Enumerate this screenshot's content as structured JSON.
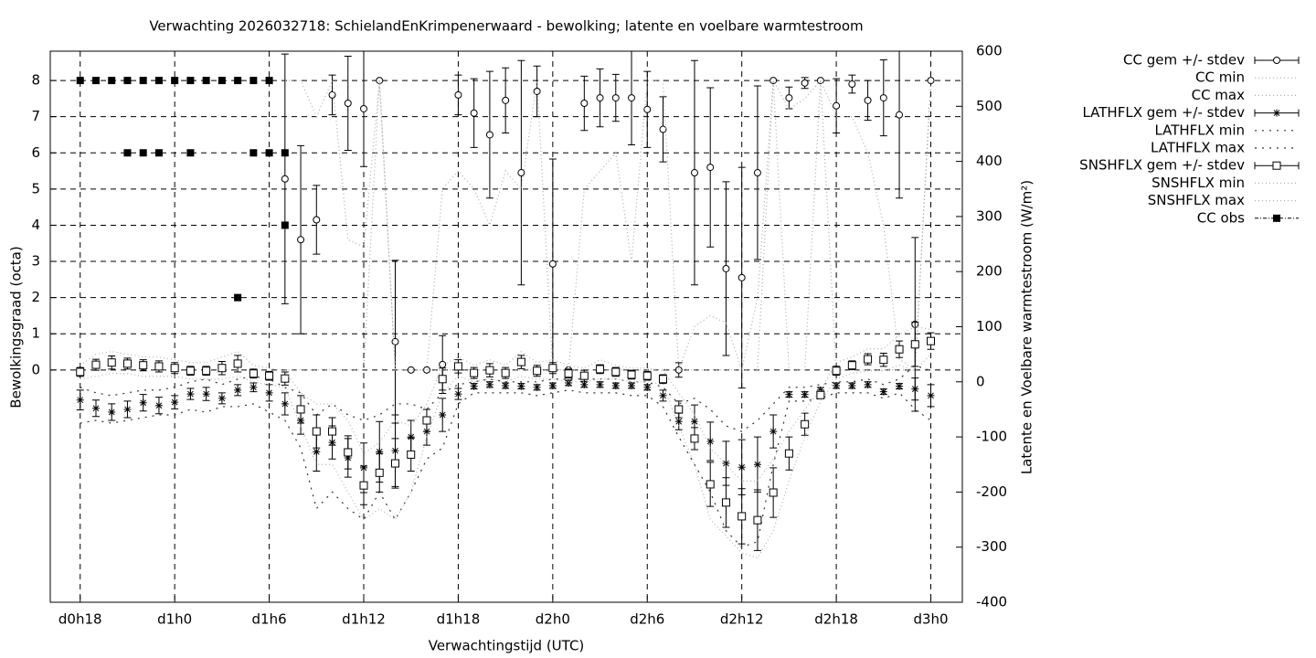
{
  "chart_data": {
    "type": "errorbar-line",
    "title": "Verwachting 2026032718: SchielandEnKrimpenerwaard - bewolking; latente en voelbare warmtestroom",
    "xlabel": "Verwachtingstijd (UTC)",
    "ylabel": "Bewolkingsgraad (octa)",
    "y2label": "Latente en Voelbare warmtestroom (W/m²)",
    "x": [
      18,
      19,
      20,
      21,
      22,
      23,
      24,
      25,
      26,
      27,
      28,
      29,
      30,
      31,
      32,
      33,
      34,
      35,
      36,
      37,
      38,
      39,
      40,
      41,
      42,
      43,
      44,
      45,
      46,
      47,
      48,
      49,
      50,
      51,
      52,
      53,
      54,
      55,
      56,
      57,
      58,
      59,
      60,
      61,
      62,
      63,
      64,
      65,
      66,
      67,
      68,
      69,
      70,
      71,
      72
    ],
    "xlim": [
      16.1,
      74
    ],
    "xticks": [
      {
        "value": 18,
        "label": "d0h18"
      },
      {
        "value": 24,
        "label": "d1h0"
      },
      {
        "value": 30,
        "label": "d1h6"
      },
      {
        "value": 36,
        "label": "d1h12"
      },
      {
        "value": 42,
        "label": "d1h18"
      },
      {
        "value": 48,
        "label": "d2h0"
      },
      {
        "value": 54,
        "label": "d2h6"
      },
      {
        "value": 60,
        "label": "d2h12"
      },
      {
        "value": 66,
        "label": "d2h18"
      },
      {
        "value": 72,
        "label": "d3h0"
      }
    ],
    "ylim": [
      -6.42,
      8.81
    ],
    "yticks": [
      0,
      1,
      2,
      3,
      4,
      5,
      6,
      7,
      8
    ],
    "y2lim": [
      -400,
      600
    ],
    "y2ticks": [
      -400,
      -300,
      -200,
      -100,
      0,
      100,
      200,
      300,
      400,
      500,
      600
    ],
    "grid": true,
    "legend": "outside-right",
    "series": [
      {
        "name": "CC gem +/- stdev",
        "style": "errorbars",
        "marker": "circle",
        "color": "#000000",
        "axis": "y",
        "values": [
          8,
          null,
          null,
          null,
          null,
          null,
          null,
          null,
          null,
          null,
          null,
          null,
          null,
          5.28,
          3.6,
          4.15,
          7.6,
          7.37,
          7.22,
          8,
          0.78,
          0,
          0,
          0.15,
          7.6,
          7.1,
          6.5,
          7.45,
          5.45,
          7.7,
          2.93,
          0,
          7.37,
          7.52,
          7.52,
          7.52,
          7.2,
          6.65,
          0,
          5.45,
          5.6,
          2.8,
          2.55,
          5.45,
          8,
          7.52,
          7.93,
          8,
          7.3,
          7.9,
          7.45,
          7.52,
          7.05,
          1.26,
          8
        ],
        "errors": [
          0,
          null,
          null,
          null,
          null,
          null,
          null,
          null,
          null,
          null,
          null,
          null,
          null,
          3.45,
          2.6,
          0.95,
          0.55,
          1.3,
          1.6,
          0,
          2.25,
          0,
          0,
          0.8,
          0.55,
          0.95,
          1.75,
          0.9,
          3.1,
          0.7,
          2.9,
          0,
          0.75,
          0.8,
          0.65,
          1.3,
          1.05,
          0.9,
          0.2,
          3.1,
          2.2,
          2.4,
          3.05,
          2.4,
          0,
          0.3,
          0.15,
          0,
          0.75,
          0.25,
          0.55,
          1.05,
          2.3,
          2.4,
          0
        ]
      },
      {
        "name": "CC min",
        "style": "line",
        "dash": "1,3",
        "color": "#aaaaaa",
        "axis": "y",
        "values": [
          8,
          null,
          null,
          null,
          null,
          null,
          null,
          null,
          null,
          null,
          null,
          null,
          null,
          0,
          0,
          0,
          0,
          0,
          0,
          8,
          0,
          0,
          0,
          0,
          0,
          0,
          0,
          0,
          0,
          0,
          0,
          0,
          0,
          0,
          0,
          0,
          0,
          0,
          0,
          0,
          0,
          0,
          0,
          0,
          8,
          0,
          0,
          8,
          0,
          0,
          0,
          0,
          0,
          0,
          8
        ]
      },
      {
        "name": "CC max",
        "style": "line",
        "dash": "1,3",
        "color": "#aaaaaa",
        "axis": "y",
        "values": [
          8,
          null,
          null,
          null,
          null,
          null,
          null,
          null,
          null,
          null,
          null,
          null,
          null,
          8,
          8,
          7,
          8,
          3.6,
          3.4,
          8,
          0,
          0,
          0,
          5,
          5.5,
          5,
          4,
          5.5,
          5,
          8,
          0,
          0,
          5,
          5.5,
          6,
          3,
          8,
          8,
          0,
          1.2,
          1.5,
          1.3,
          0,
          2,
          8,
          7.2,
          7.5,
          8,
          7,
          7,
          6,
          4,
          0.3,
          0,
          8
        ]
      },
      {
        "name": "LATHFLX gem +/- stdev",
        "style": "errorbars",
        "marker": "star",
        "color": "#000000",
        "axis": "y2",
        "values": [
          -33,
          -48,
          -55,
          -50,
          -38,
          -43,
          -37,
          -22,
          -22,
          -30,
          -15,
          -10,
          -20,
          -40,
          -70,
          -127,
          -110,
          -138,
          -156,
          -127,
          -125,
          -100,
          -90,
          -60,
          -22,
          -8,
          -5,
          -7,
          -8,
          -10,
          -7,
          -2,
          -5,
          -5,
          -7,
          -7,
          -10,
          -25,
          -72,
          -72,
          -108,
          -148,
          -155,
          -150,
          -90,
          -23,
          -23,
          -15,
          -7,
          -7,
          -5,
          -18,
          -8,
          -13,
          -25
        ],
        "errors": [
          18,
          15,
          15,
          15,
          15,
          15,
          12,
          10,
          12,
          10,
          10,
          8,
          15,
          20,
          25,
          35,
          30,
          35,
          45,
          55,
          65,
          30,
          25,
          30,
          10,
          5,
          5,
          5,
          5,
          5,
          5,
          5,
          5,
          5,
          5,
          5,
          5,
          10,
          15,
          30,
          35,
          40,
          50,
          50,
          30,
          5,
          5,
          5,
          5,
          5,
          5,
          5,
          5,
          20,
          20
        ]
      },
      {
        "name": "LATHFLX min",
        "style": "line",
        "dash": "2,6",
        "color": "#333333",
        "axis": "y2",
        "values": [
          -75,
          -70,
          -75,
          -70,
          -65,
          -60,
          -60,
          -50,
          -55,
          -45,
          -45,
          -40,
          -55,
          -70,
          -120,
          -230,
          -200,
          -230,
          -250,
          -200,
          -250,
          -200,
          -140,
          -120,
          -40,
          -20,
          -20,
          -20,
          -20,
          -25,
          -20,
          -15,
          -20,
          -20,
          -20,
          -25,
          -25,
          -45,
          -100,
          -150,
          -200,
          -270,
          -300,
          -290,
          -150,
          -35,
          -35,
          -30,
          -20,
          -20,
          -20,
          -30,
          -20,
          -50,
          -70
        ]
      },
      {
        "name": "LATHFLX max",
        "style": "line",
        "dash": "2,6",
        "color": "#333333",
        "axis": "y2",
        "values": [
          -10,
          -20,
          -25,
          -20,
          -15,
          -15,
          -10,
          0,
          5,
          -5,
          5,
          10,
          5,
          -10,
          -20,
          -60,
          -40,
          -60,
          -70,
          -60,
          -40,
          -40,
          -50,
          -20,
          -5,
          0,
          5,
          0,
          0,
          0,
          5,
          5,
          5,
          5,
          5,
          0,
          0,
          -10,
          -40,
          -30,
          -50,
          -80,
          -90,
          -70,
          -40,
          -10,
          -10,
          -5,
          0,
          0,
          5,
          -5,
          5,
          30,
          20
        ]
      },
      {
        "name": "SNSHFLX gem +/- stdev",
        "style": "errorbars",
        "marker": "square",
        "color": "#000000",
        "axis": "y2",
        "values": [
          18,
          31,
          35,
          33,
          30,
          28,
          25,
          20,
          20,
          25,
          33,
          15,
          11,
          6,
          -50,
          -90,
          -90,
          -128,
          -188,
          -165,
          -148,
          -132,
          -70,
          5,
          28,
          16,
          21,
          16,
          36,
          20,
          25,
          15,
          11,
          23,
          18,
          13,
          11,
          5,
          -50,
          -103,
          -186,
          -219,
          -244,
          -251,
          -201,
          -130,
          -77,
          -24,
          20,
          30,
          41,
          40,
          59,
          68,
          74
        ],
        "errors": [
          8,
          10,
          12,
          10,
          10,
          10,
          10,
          8,
          8,
          12,
          15,
          8,
          8,
          12,
          25,
          30,
          25,
          30,
          35,
          35,
          45,
          30,
          20,
          20,
          12,
          10,
          12,
          10,
          12,
          10,
          10,
          8,
          10,
          8,
          8,
          8,
          8,
          8,
          15,
          20,
          40,
          45,
          50,
          55,
          45,
          30,
          20,
          5,
          8,
          8,
          10,
          12,
          15,
          40,
          15
        ]
      },
      {
        "name": "SNSHFLX min",
        "style": "line",
        "dash": "1,3",
        "color": "#b0b0b0",
        "axis": "y2",
        "values": [
          5,
          10,
          15,
          15,
          10,
          10,
          10,
          5,
          5,
          5,
          10,
          0,
          -5,
          -10,
          -80,
          -150,
          -150,
          -200,
          -250,
          -230,
          -250,
          -200,
          -100,
          -20,
          10,
          0,
          5,
          0,
          10,
          5,
          5,
          0,
          0,
          5,
          5,
          0,
          0,
          -5,
          -80,
          -150,
          -250,
          -280,
          -310,
          -320,
          -270,
          -180,
          -100,
          -35,
          5,
          15,
          20,
          20,
          30,
          20,
          50
        ]
      },
      {
        "name": "SNSHFLX max",
        "style": "line",
        "dash": "1,3",
        "color": "#b0b0b0",
        "axis": "y2",
        "values": [
          30,
          50,
          55,
          50,
          45,
          45,
          40,
          35,
          35,
          45,
          55,
          30,
          25,
          20,
          -20,
          -40,
          -40,
          -70,
          -130,
          -110,
          -70,
          -80,
          -40,
          30,
          45,
          30,
          40,
          30,
          55,
          35,
          40,
          30,
          25,
          40,
          30,
          25,
          25,
          20,
          -20,
          -60,
          -120,
          -150,
          -180,
          -180,
          -140,
          -90,
          -50,
          -15,
          35,
          45,
          60,
          60,
          85,
          100,
          95
        ]
      },
      {
        "name": "CC obs",
        "style": "points",
        "marker": "filled-square",
        "color": "#000000",
        "axis": "y",
        "x": [
          18,
          19,
          20,
          21,
          22,
          23,
          24,
          25,
          26,
          27,
          28,
          29,
          30,
          21,
          22,
          23,
          25,
          29,
          30,
          31,
          31,
          28
        ],
        "values": [
          8,
          8,
          8,
          8,
          8,
          8,
          8,
          8,
          8,
          8,
          8,
          8,
          8,
          6,
          6,
          6,
          6,
          6,
          6,
          6,
          4,
          2
        ]
      }
    ]
  }
}
